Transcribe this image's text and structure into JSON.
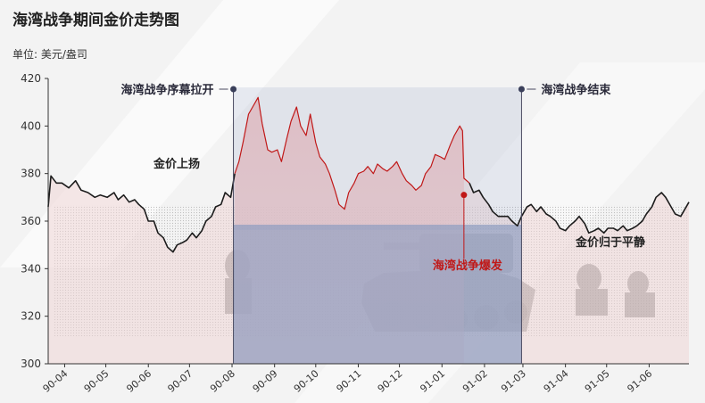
{
  "chart_data": {
    "type": "line",
    "title": "海湾战争期间金价走势图",
    "ylabel": "单位: 美元/盎司",
    "ylim": [
      300,
      420
    ],
    "yticks": [
      300,
      320,
      340,
      360,
      380,
      400,
      420
    ],
    "x_range": [
      "1990-03-20",
      "1991-06-30"
    ],
    "xtick_labels": [
      "90-04",
      "90-05",
      "90-06",
      "90-07",
      "90-08",
      "90-09",
      "90-10",
      "90-11",
      "90-12",
      "91-01",
      "91-02",
      "91-03",
      "91-04",
      "91-05",
      "91-06"
    ],
    "xtick_dates": [
      "1990-04-01",
      "1990-05-01",
      "1990-06-01",
      "1990-07-01",
      "1990-08-01",
      "1990-09-01",
      "1990-10-01",
      "1990-11-01",
      "1990-12-01",
      "1991-01-01",
      "1991-02-01",
      "1991-03-01",
      "1991-04-01",
      "1991-05-01",
      "1991-06-01"
    ],
    "series": [
      {
        "values": [
          [
            "1990-03-20",
            366
          ],
          [
            "1990-03-22",
            379
          ],
          [
            "1990-03-26",
            376
          ],
          [
            "1990-03-30",
            376
          ],
          [
            "1990-04-04",
            374
          ],
          [
            "1990-04-09",
            377
          ],
          [
            "1990-04-13",
            373
          ],
          [
            "1990-04-18",
            372
          ],
          [
            "1990-04-23",
            370
          ],
          [
            "1990-04-27",
            371
          ],
          [
            "1990-05-02",
            370
          ],
          [
            "1990-05-07",
            372
          ],
          [
            "1990-05-10",
            369
          ],
          [
            "1990-05-14",
            371
          ],
          [
            "1990-05-18",
            368
          ],
          [
            "1990-05-22",
            369
          ],
          [
            "1990-05-25",
            367
          ],
          [
            "1990-05-29",
            365
          ],
          [
            "1990-06-01",
            360
          ],
          [
            "1990-06-05",
            360
          ],
          [
            "1990-06-08",
            355
          ],
          [
            "1990-06-12",
            353
          ],
          [
            "1990-06-15",
            349
          ],
          [
            "1990-06-19",
            347
          ],
          [
            "1990-06-22",
            350
          ],
          [
            "1990-06-26",
            351
          ],
          [
            "1990-06-29",
            352
          ],
          [
            "1990-07-03",
            355
          ],
          [
            "1990-07-06",
            353
          ],
          [
            "1990-07-10",
            356
          ],
          [
            "1990-07-13",
            360
          ],
          [
            "1990-07-17",
            362
          ],
          [
            "1990-07-20",
            366
          ],
          [
            "1990-07-24",
            367
          ],
          [
            "1990-07-27",
            372
          ],
          [
            "1990-07-31",
            370
          ],
          [
            "1990-08-03",
            380
          ],
          [
            "1990-08-06",
            385
          ],
          [
            "1990-08-09",
            393
          ],
          [
            "1990-08-13",
            405
          ],
          [
            "1990-08-16",
            408
          ],
          [
            "1990-08-20",
            412
          ],
          [
            "1990-08-23",
            401
          ],
          [
            "1990-08-27",
            390
          ],
          [
            "1990-08-30",
            389
          ],
          [
            "1990-09-03",
            390
          ],
          [
            "1990-09-06",
            385
          ],
          [
            "1990-09-10",
            395
          ],
          [
            "1990-09-13",
            402
          ],
          [
            "1990-09-17",
            408
          ],
          [
            "1990-09-20",
            400
          ],
          [
            "1990-09-24",
            396
          ],
          [
            "1990-09-27",
            405
          ],
          [
            "1990-10-01",
            393
          ],
          [
            "1990-10-04",
            387
          ],
          [
            "1990-10-08",
            384
          ],
          [
            "1990-10-11",
            380
          ],
          [
            "1990-10-15",
            373
          ],
          [
            "1990-10-18",
            367
          ],
          [
            "1990-10-22",
            365
          ],
          [
            "1990-10-25",
            372
          ],
          [
            "1990-10-29",
            376
          ],
          [
            "1990-11-01",
            380
          ],
          [
            "1990-11-05",
            381
          ],
          [
            "1990-11-08",
            383
          ],
          [
            "1990-11-12",
            380
          ],
          [
            "1990-11-15",
            384
          ],
          [
            "1990-11-19",
            382
          ],
          [
            "1990-11-22",
            381
          ],
          [
            "1990-11-26",
            383
          ],
          [
            "1990-11-29",
            385
          ],
          [
            "1990-12-03",
            380
          ],
          [
            "1990-12-06",
            377
          ],
          [
            "1990-12-10",
            375
          ],
          [
            "1990-12-13",
            373
          ],
          [
            "1990-12-17",
            375
          ],
          [
            "1990-12-20",
            380
          ],
          [
            "1990-12-24",
            383
          ],
          [
            "1990-12-27",
            388
          ],
          [
            "1990-12-31",
            387
          ],
          [
            "1991-01-03",
            386
          ],
          [
            "1991-01-07",
            392
          ],
          [
            "1991-01-10",
            396
          ],
          [
            "1991-01-14",
            400
          ],
          [
            "1991-01-16",
            398
          ],
          [
            "1991-01-17",
            378
          ],
          [
            "1991-01-21",
            376
          ],
          [
            "1991-01-24",
            372
          ],
          [
            "1991-01-28",
            373
          ],
          [
            "1991-01-31",
            370
          ],
          [
            "1991-02-04",
            367
          ],
          [
            "1991-02-07",
            364
          ],
          [
            "1991-02-11",
            362
          ],
          [
            "1991-02-14",
            362
          ],
          [
            "1991-02-18",
            362
          ],
          [
            "1991-02-21",
            360
          ],
          [
            "1991-02-25",
            358
          ],
          [
            "1991-02-28",
            362
          ],
          [
            "1991-03-04",
            366
          ],
          [
            "1991-03-07",
            367
          ],
          [
            "1991-03-11",
            364
          ],
          [
            "1991-03-14",
            366
          ],
          [
            "1991-03-18",
            363
          ],
          [
            "1991-03-21",
            362
          ],
          [
            "1991-03-25",
            360
          ],
          [
            "1991-03-28",
            357
          ],
          [
            "1991-04-01",
            356
          ],
          [
            "1991-04-04",
            358
          ],
          [
            "1991-04-08",
            360
          ],
          [
            "1991-04-11",
            362
          ],
          [
            "1991-04-15",
            359
          ],
          [
            "1991-04-18",
            355
          ],
          [
            "1991-04-22",
            356
          ],
          [
            "1991-04-25",
            357
          ],
          [
            "1991-04-29",
            355
          ],
          [
            "1991-05-02",
            357
          ],
          [
            "1991-05-06",
            357
          ],
          [
            "1991-05-09",
            356
          ],
          [
            "1991-05-13",
            358
          ],
          [
            "1991-05-16",
            356
          ],
          [
            "1991-05-20",
            357
          ],
          [
            "1991-05-23",
            358
          ],
          [
            "1991-05-27",
            360
          ],
          [
            "1991-05-30",
            363
          ],
          [
            "1991-06-03",
            366
          ],
          [
            "1991-06-06",
            370
          ],
          [
            "1991-06-10",
            372
          ],
          [
            "1991-06-13",
            370
          ],
          [
            "1991-06-17",
            366
          ],
          [
            "1991-06-20",
            363
          ],
          [
            "1991-06-24",
            362
          ],
          [
            "1991-06-27",
            365
          ],
          [
            "1991-06-30",
            368
          ]
        ]
      }
    ],
    "shaded_region": {
      "start": "1990-08-02",
      "end": "1991-02-28",
      "color": "#8d9dc0"
    },
    "highlight_range": {
      "start": "1990-08-02",
      "end": "1991-01-17",
      "color": "#c01818"
    },
    "annotations": [
      {
        "id": "war-start",
        "text": "海湾战争序幕拉开",
        "date": "1990-08-02"
      },
      {
        "id": "war-end",
        "text": "海湾战争结束",
        "date": "1991-02-28"
      },
      {
        "id": "gold-rise",
        "text": "金价上扬",
        "date": "1990-07-10",
        "value": 379
      },
      {
        "id": "war-outbreak",
        "text": "海湾战争爆发",
        "date": "1991-01-17",
        "value": 371
      },
      {
        "id": "gold-calm",
        "text": "金价归于平静",
        "date": "1991-04-10",
        "value": 350
      }
    ],
    "colors": {
      "line": "#1c1c1c",
      "highlight_line": "#c01818",
      "highlight_fill": "#f1c6c6",
      "outbreak_text": "#c01818",
      "marker": "#3a3f5a"
    },
    "grid": false,
    "legend": "none"
  }
}
